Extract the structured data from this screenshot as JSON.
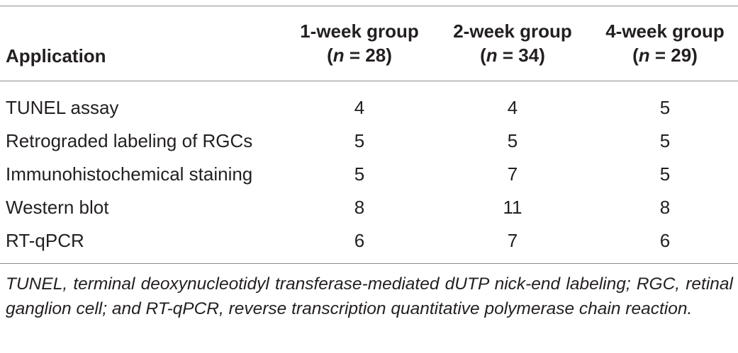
{
  "table": {
    "header": {
      "application": "Application",
      "columns": [
        {
          "label": "1-week group",
          "n_prefix": "(",
          "n_symbol": "n",
          "n_suffix": " = 28)"
        },
        {
          "label": "2-week group",
          "n_prefix": "(",
          "n_symbol": "n",
          "n_suffix": " = 34)"
        },
        {
          "label": "4-week group",
          "n_prefix": "(",
          "n_symbol": "n",
          "n_suffix": " = 29)"
        }
      ]
    },
    "rows": [
      {
        "application": "TUNEL assay",
        "values": [
          "4",
          "4",
          "5"
        ]
      },
      {
        "application": "Retrograded labeling of RGCs",
        "values": [
          "5",
          "5",
          "5"
        ]
      },
      {
        "application": "Immunohistochemical staining",
        "values": [
          "5",
          "7",
          "5"
        ]
      },
      {
        "application": "Western blot",
        "values": [
          "8",
          "11",
          "8"
        ]
      },
      {
        "application": "RT-qPCR",
        "values": [
          "6",
          "7",
          "6"
        ]
      }
    ],
    "footnote": "TUNEL, terminal deoxynucleotidyl transferase-mediated dUTP nick-end labeling; RGC, retinal ganglion cell; and RT-qPCR, reverse transcription quantitative polymerase chain reaction."
  }
}
